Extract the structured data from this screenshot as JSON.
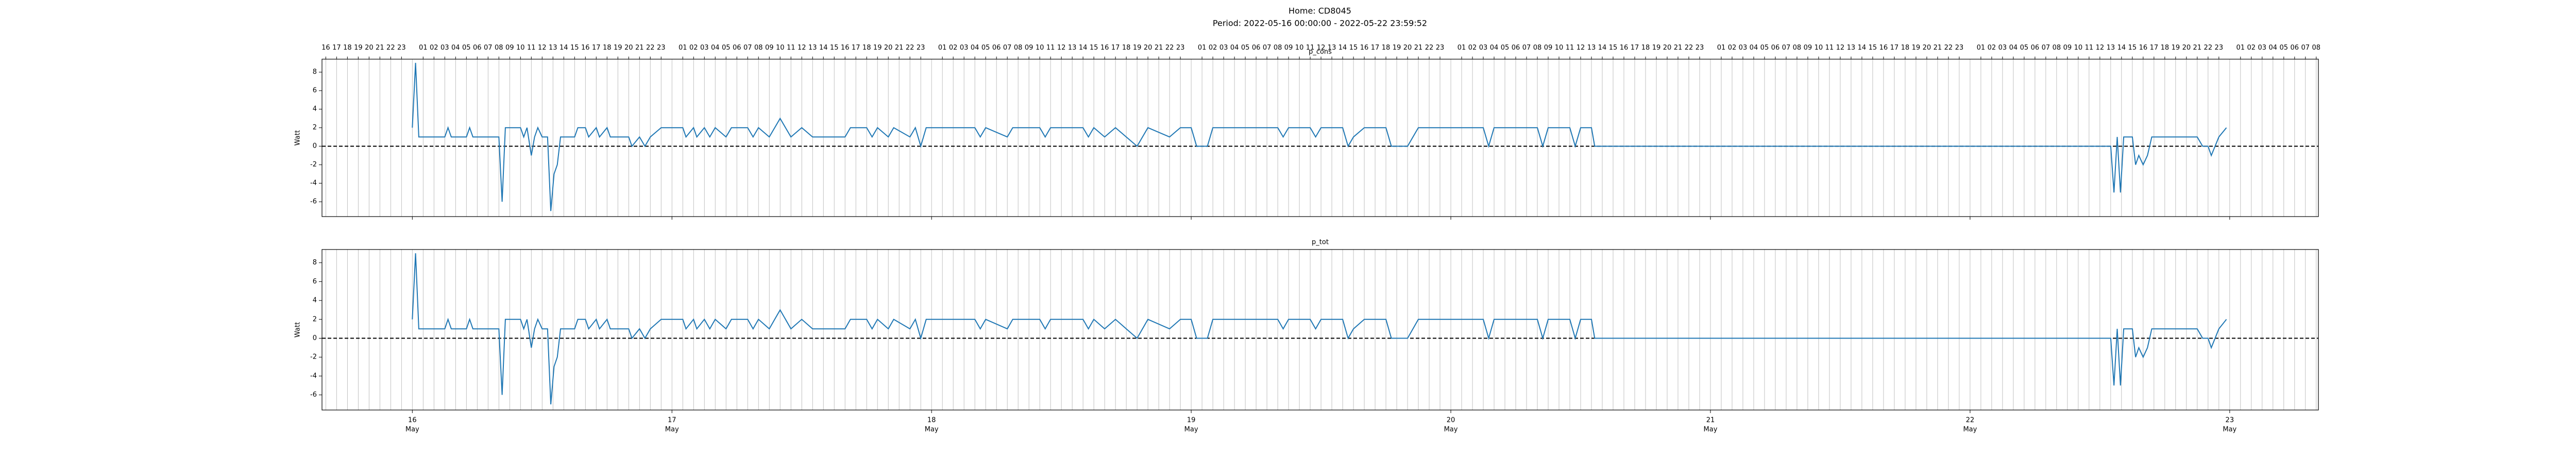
{
  "title": "Home: CD8045",
  "subtitle": "Period: 2022-05-16 00:00:00 - 2022-05-22 23:59:52",
  "xaxis": {
    "xlim": [
      -8.35,
      176.2
    ],
    "xticks": [
      {
        "value": 0,
        "label": "16",
        "sublabel": "May"
      },
      {
        "value": 24,
        "label": "17",
        "sublabel": "May"
      },
      {
        "value": 48,
        "label": "18",
        "sublabel": "May"
      },
      {
        "value": 72,
        "label": "19",
        "sublabel": "May"
      },
      {
        "value": 96,
        "label": "20",
        "sublabel": "May"
      },
      {
        "value": 120,
        "label": "21",
        "sublabel": "May"
      },
      {
        "value": 144,
        "label": "22",
        "sublabel": "May"
      },
      {
        "value": 168,
        "label": "23",
        "sublabel": "May"
      }
    ],
    "x2ticks": [
      {
        "value": -8,
        "label": "16"
      },
      {
        "value": -7,
        "label": "17"
      },
      {
        "value": -6,
        "label": "18"
      },
      {
        "value": -5,
        "label": "19"
      },
      {
        "value": -4,
        "label": "20"
      },
      {
        "value": -3,
        "label": "21"
      },
      {
        "value": -2,
        "label": "22"
      },
      {
        "value": -1,
        "label": "23"
      },
      {
        "value": 1,
        "label": "01"
      },
      {
        "value": 2,
        "label": "02"
      },
      {
        "value": 3,
        "label": "03"
      },
      {
        "value": 4,
        "label": "04"
      },
      {
        "value": 5,
        "label": "05"
      },
      {
        "value": 6,
        "label": "06"
      },
      {
        "value": 7,
        "label": "07"
      },
      {
        "value": 8,
        "label": "08"
      },
      {
        "value": 9,
        "label": "09"
      },
      {
        "value": 10,
        "label": "10"
      },
      {
        "value": 11,
        "label": "11"
      },
      {
        "value": 12,
        "label": "12"
      },
      {
        "value": 13,
        "label": "13"
      },
      {
        "value": 14,
        "label": "14"
      },
      {
        "value": 15,
        "label": "15"
      },
      {
        "value": 16,
        "label": "16"
      },
      {
        "value": 17,
        "label": "17"
      },
      {
        "value": 18,
        "label": "18"
      },
      {
        "value": 19,
        "label": "19"
      },
      {
        "value": 20,
        "label": "20"
      },
      {
        "value": 21,
        "label": "21"
      },
      {
        "value": 22,
        "label": "22"
      },
      {
        "value": 23,
        "label": "23"
      },
      {
        "value": 25,
        "label": "01"
      },
      {
        "value": 26,
        "label": "02"
      },
      {
        "value": 27,
        "label": "03"
      },
      {
        "value": 28,
        "label": "04"
      },
      {
        "value": 29,
        "label": "05"
      },
      {
        "value": 30,
        "label": "06"
      },
      {
        "value": 31,
        "label": "07"
      },
      {
        "value": 32,
        "label": "08"
      },
      {
        "value": 33,
        "label": "09"
      },
      {
        "value": 34,
        "label": "10"
      },
      {
        "value": 35,
        "label": "11"
      },
      {
        "value": 36,
        "label": "12"
      },
      {
        "value": 37,
        "label": "13"
      },
      {
        "value": 38,
        "label": "14"
      },
      {
        "value": 39,
        "label": "15"
      },
      {
        "value": 40,
        "label": "16"
      },
      {
        "value": 41,
        "label": "17"
      },
      {
        "value": 42,
        "label": "18"
      },
      {
        "value": 43,
        "label": "19"
      },
      {
        "value": 44,
        "label": "20"
      },
      {
        "value": 45,
        "label": "21"
      },
      {
        "value": 46,
        "label": "22"
      },
      {
        "value": 47,
        "label": "23"
      },
      {
        "value": 49,
        "label": "01"
      },
      {
        "value": 50,
        "label": "02"
      },
      {
        "value": 51,
        "label": "03"
      },
      {
        "value": 52,
        "label": "04"
      },
      {
        "value": 53,
        "label": "05"
      },
      {
        "value": 54,
        "label": "06"
      },
      {
        "value": 55,
        "label": "07"
      },
      {
        "value": 56,
        "label": "08"
      },
      {
        "value": 57,
        "label": "09"
      },
      {
        "value": 58,
        "label": "10"
      },
      {
        "value": 59,
        "label": "11"
      },
      {
        "value": 60,
        "label": "12"
      },
      {
        "value": 61,
        "label": "13"
      },
      {
        "value": 62,
        "label": "14"
      },
      {
        "value": 63,
        "label": "15"
      },
      {
        "value": 64,
        "label": "16"
      },
      {
        "value": 65,
        "label": "17"
      },
      {
        "value": 66,
        "label": "18"
      },
      {
        "value": 67,
        "label": "19"
      },
      {
        "value": 68,
        "label": "20"
      },
      {
        "value": 69,
        "label": "21"
      },
      {
        "value": 70,
        "label": "22"
      },
      {
        "value": 71,
        "label": "23"
      },
      {
        "value": 73,
        "label": "01"
      },
      {
        "value": 74,
        "label": "02"
      },
      {
        "value": 75,
        "label": "03"
      },
      {
        "value": 76,
        "label": "04"
      },
      {
        "value": 77,
        "label": "05"
      },
      {
        "value": 78,
        "label": "06"
      },
      {
        "value": 79,
        "label": "07"
      },
      {
        "value": 80,
        "label": "08"
      },
      {
        "value": 81,
        "label": "09"
      },
      {
        "value": 82,
        "label": "10"
      },
      {
        "value": 83,
        "label": "11"
      },
      {
        "value": 84,
        "label": "12"
      },
      {
        "value": 85,
        "label": "13"
      },
      {
        "value": 86,
        "label": "14"
      },
      {
        "value": 87,
        "label": "15"
      },
      {
        "value": 88,
        "label": "16"
      },
      {
        "value": 89,
        "label": "17"
      },
      {
        "value": 90,
        "label": "18"
      },
      {
        "value": 91,
        "label": "19"
      },
      {
        "value": 92,
        "label": "20"
      },
      {
        "value": 93,
        "label": "21"
      },
      {
        "value": 94,
        "label": "22"
      },
      {
        "value": 95,
        "label": "23"
      },
      {
        "value": 97,
        "label": "01"
      },
      {
        "value": 98,
        "label": "02"
      },
      {
        "value": 99,
        "label": "03"
      },
      {
        "value": 100,
        "label": "04"
      },
      {
        "value": 101,
        "label": "05"
      },
      {
        "value": 102,
        "label": "06"
      },
      {
        "value": 103,
        "label": "07"
      },
      {
        "value": 104,
        "label": "08"
      },
      {
        "value": 105,
        "label": "09"
      },
      {
        "value": 106,
        "label": "10"
      },
      {
        "value": 107,
        "label": "11"
      },
      {
        "value": 108,
        "label": "12"
      },
      {
        "value": 109,
        "label": "13"
      },
      {
        "value": 110,
        "label": "14"
      },
      {
        "value": 111,
        "label": "15"
      },
      {
        "value": 112,
        "label": "16"
      },
      {
        "value": 113,
        "label": "17"
      },
      {
        "value": 114,
        "label": "18"
      },
      {
        "value": 115,
        "label": "19"
      },
      {
        "value": 116,
        "label": "20"
      },
      {
        "value": 117,
        "label": "21"
      },
      {
        "value": 118,
        "label": "22"
      },
      {
        "value": 119,
        "label": "23"
      },
      {
        "value": 121,
        "label": "01"
      },
      {
        "value": 122,
        "label": "02"
      },
      {
        "value": 123,
        "label": "03"
      },
      {
        "value": 124,
        "label": "04"
      },
      {
        "value": 125,
        "label": "05"
      },
      {
        "value": 126,
        "label": "06"
      },
      {
        "value": 127,
        "label": "07"
      },
      {
        "value": 128,
        "label": "08"
      },
      {
        "value": 129,
        "label": "09"
      },
      {
        "value": 130,
        "label": "10"
      },
      {
        "value": 131,
        "label": "11"
      },
      {
        "value": 132,
        "label": "12"
      },
      {
        "value": 133,
        "label": "13"
      },
      {
        "value": 134,
        "label": "14"
      },
      {
        "value": 135,
        "label": "15"
      },
      {
        "value": 136,
        "label": "16"
      },
      {
        "value": 137,
        "label": "17"
      },
      {
        "value": 138,
        "label": "18"
      },
      {
        "value": 139,
        "label": "19"
      },
      {
        "value": 140,
        "label": "20"
      },
      {
        "value": 141,
        "label": "21"
      },
      {
        "value": 142,
        "label": "22"
      },
      {
        "value": 143,
        "label": "23"
      },
      {
        "value": 145,
        "label": "01"
      },
      {
        "value": 146,
        "label": "02"
      },
      {
        "value": 147,
        "label": "03"
      },
      {
        "value": 148,
        "label": "04"
      },
      {
        "value": 149,
        "label": "05"
      },
      {
        "value": 150,
        "label": "06"
      },
      {
        "value": 151,
        "label": "07"
      },
      {
        "value": 152,
        "label": "08"
      },
      {
        "value": 153,
        "label": "09"
      },
      {
        "value": 154,
        "label": "10"
      },
      {
        "value": 155,
        "label": "11"
      },
      {
        "value": 156,
        "label": "12"
      },
      {
        "value": 157,
        "label": "13"
      },
      {
        "value": 158,
        "label": "14"
      },
      {
        "value": 159,
        "label": "15"
      },
      {
        "value": 160,
        "label": "16"
      },
      {
        "value": 161,
        "label": "17"
      },
      {
        "value": 162,
        "label": "18"
      },
      {
        "value": 163,
        "label": "19"
      },
      {
        "value": 164,
        "label": "20"
      },
      {
        "value": 165,
        "label": "21"
      },
      {
        "value": 166,
        "label": "22"
      },
      {
        "value": 167,
        "label": "23"
      },
      {
        "value": 169,
        "label": "01"
      },
      {
        "value": 170,
        "label": "02"
      },
      {
        "value": 171,
        "label": "03"
      },
      {
        "value": 172,
        "label": "04"
      },
      {
        "value": 173,
        "label": "05"
      },
      {
        "value": 174,
        "label": "06"
      },
      {
        "value": 175,
        "label": "07"
      },
      {
        "value": 176,
        "label": "08"
      }
    ]
  },
  "chart_data": [
    {
      "type": "line",
      "title": "p_cons",
      "ylabel": "Watt",
      "color": "#1f77b4",
      "hline": 0,
      "grid": true,
      "ylim": [
        -7.6,
        9.4
      ],
      "yticks": [
        -6,
        -4,
        -2,
        0,
        2,
        4,
        6,
        8
      ],
      "x": [
        0,
        0.3,
        0.6,
        3,
        3.3,
        3.6,
        5,
        5.3,
        5.6,
        8,
        8.3,
        8.6,
        10,
        10.3,
        10.6,
        11,
        11.3,
        11.6,
        12,
        12.5,
        12.8,
        13.1,
        13.4,
        13.7,
        15,
        15.3,
        16,
        16.3,
        17,
        17.3,
        18,
        18.3,
        20,
        20.3,
        21,
        21.5,
        22,
        23,
        25,
        25.3,
        26,
        26.3,
        27,
        27.5,
        28,
        29,
        29.5,
        31,
        31.5,
        32,
        33,
        33.5,
        34,
        34.5,
        35,
        36,
        37,
        38,
        40,
        40.5,
        42,
        42.5,
        43,
        44,
        44.5,
        46,
        46.5,
        47,
        47.5,
        52,
        52.5,
        53,
        55,
        55.5,
        58,
        58.5,
        59,
        62,
        62.5,
        63,
        64,
        65,
        66,
        67,
        68,
        70,
        71,
        72,
        72.5,
        73.5,
        74,
        80,
        80.5,
        81,
        83,
        83.5,
        84,
        86,
        86.5,
        87,
        88,
        90,
        90.5,
        92,
        93,
        99,
        99.5,
        100,
        104,
        104.5,
        105,
        107,
        107.5,
        108,
        109,
        109.3,
        157,
        157.3,
        157.6,
        157.9,
        158.2,
        159,
        159.3,
        159.6,
        160,
        160.4,
        160.8,
        165,
        165.5,
        166,
        166.3,
        167,
        167.7
      ],
      "values": [
        2,
        9,
        1,
        1,
        2,
        1,
        1,
        2,
        1,
        1,
        -6,
        2,
        2,
        1,
        2,
        -1,
        1,
        2,
        1,
        1,
        -7,
        -3,
        -2,
        1,
        1,
        2,
        2,
        1,
        2,
        1,
        2,
        1,
        1,
        0,
        1,
        0,
        1,
        2,
        2,
        1,
        2,
        1,
        2,
        1,
        2,
        1,
        2,
        2,
        1,
        2,
        1,
        2,
        3,
        2,
        1,
        2,
        1,
        1,
        1,
        2,
        2,
        1,
        2,
        1,
        2,
        1,
        2,
        0,
        2,
        2,
        1,
        2,
        1,
        2,
        2,
        1,
        2,
        2,
        1,
        2,
        1,
        2,
        1,
        0,
        2,
        1,
        2,
        2,
        0,
        0,
        2,
        2,
        1,
        2,
        2,
        1,
        2,
        2,
        0,
        1,
        2,
        2,
        0,
        0,
        2,
        2,
        0,
        2,
        2,
        0,
        2,
        2,
        0,
        2,
        2,
        0,
        0,
        -5,
        1,
        -5,
        1,
        1,
        -2,
        -1,
        -2,
        -1,
        1,
        1,
        0,
        0,
        -1,
        1,
        2
      ]
    },
    {
      "type": "line",
      "title": "p_tot",
      "ylabel": "Watt",
      "color": "#1f77b4",
      "hline": 0,
      "grid": true,
      "ylim": [
        -7.6,
        9.4
      ],
      "yticks": [
        -6,
        -4,
        -2,
        0,
        2,
        4,
        6,
        8
      ],
      "x": [
        0,
        0.3,
        0.6,
        3,
        3.3,
        3.6,
        5,
        5.3,
        5.6,
        8,
        8.3,
        8.6,
        10,
        10.3,
        10.6,
        11,
        11.3,
        11.6,
        12,
        12.5,
        12.8,
        13.1,
        13.4,
        13.7,
        15,
        15.3,
        16,
        16.3,
        17,
        17.3,
        18,
        18.3,
        20,
        20.3,
        21,
        21.5,
        22,
        23,
        25,
        25.3,
        26,
        26.3,
        27,
        27.5,
        28,
        29,
        29.5,
        31,
        31.5,
        32,
        33,
        33.5,
        34,
        34.5,
        35,
        36,
        37,
        38,
        40,
        40.5,
        42,
        42.5,
        43,
        44,
        44.5,
        46,
        46.5,
        47,
        47.5,
        52,
        52.5,
        53,
        55,
        55.5,
        58,
        58.5,
        59,
        62,
        62.5,
        63,
        64,
        65,
        66,
        67,
        68,
        70,
        71,
        72,
        72.5,
        73.5,
        74,
        80,
        80.5,
        81,
        83,
        83.5,
        84,
        86,
        86.5,
        87,
        88,
        90,
        90.5,
        92,
        93,
        99,
        99.5,
        100,
        104,
        104.5,
        105,
        107,
        107.5,
        108,
        109,
        109.3,
        157,
        157.3,
        157.6,
        157.9,
        158.2,
        159,
        159.3,
        159.6,
        160,
        160.4,
        160.8,
        165,
        165.5,
        166,
        166.3,
        167,
        167.7
      ],
      "values": [
        2,
        9,
        1,
        1,
        2,
        1,
        1,
        2,
        1,
        1,
        -6,
        2,
        2,
        1,
        2,
        -1,
        1,
        2,
        1,
        1,
        -7,
        -3,
        -2,
        1,
        1,
        2,
        2,
        1,
        2,
        1,
        2,
        1,
        1,
        0,
        1,
        0,
        1,
        2,
        2,
        1,
        2,
        1,
        2,
        1,
        2,
        1,
        2,
        2,
        1,
        2,
        1,
        2,
        3,
        2,
        1,
        2,
        1,
        1,
        1,
        2,
        2,
        1,
        2,
        1,
        2,
        1,
        2,
        0,
        2,
        2,
        1,
        2,
        1,
        2,
        2,
        1,
        2,
        2,
        1,
        2,
        1,
        2,
        1,
        0,
        2,
        1,
        2,
        2,
        0,
        0,
        2,
        2,
        1,
        2,
        2,
        1,
        2,
        2,
        0,
        1,
        2,
        2,
        0,
        0,
        2,
        2,
        0,
        2,
        2,
        0,
        2,
        2,
        0,
        2,
        2,
        0,
        0,
        -5,
        1,
        -5,
        1,
        1,
        -2,
        -1,
        -2,
        -1,
        1,
        1,
        0,
        0,
        -1,
        1,
        2
      ]
    }
  ]
}
